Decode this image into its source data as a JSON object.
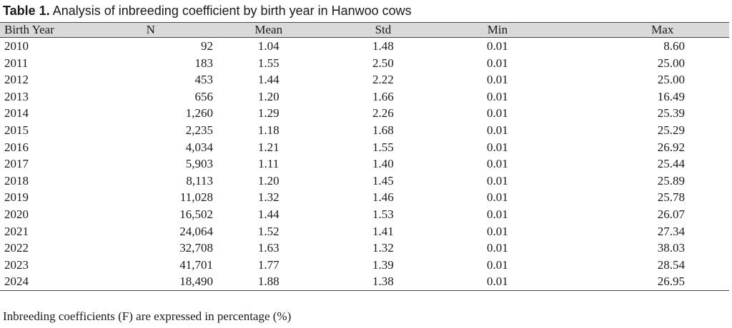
{
  "caption": {
    "label": "Table 1.",
    "text": "Analysis of inbreeding coefficient by birth year in Hanwoo cows"
  },
  "table": {
    "headers": [
      "Birth Year",
      "N",
      "Mean",
      "Std",
      "Min",
      "Max"
    ],
    "rows": [
      [
        "2010",
        "92",
        "1.04",
        "1.48",
        "0.01",
        "8.60"
      ],
      [
        "2011",
        "183",
        "1.55",
        "2.50",
        "0.01",
        "25.00"
      ],
      [
        "2012",
        "453",
        "1.44",
        "2.22",
        "0.01",
        "25.00"
      ],
      [
        "2013",
        "656",
        "1.20",
        "1.66",
        "0.01",
        "16.49"
      ],
      [
        "2014",
        "1,260",
        "1.29",
        "2.26",
        "0.01",
        "25.39"
      ],
      [
        "2015",
        "2,235",
        "1.18",
        "1.68",
        "0.01",
        "25.29"
      ],
      [
        "2016",
        "4,034",
        "1.21",
        "1.55",
        "0.01",
        "26.92"
      ],
      [
        "2017",
        "5,903",
        "1.11",
        "1.40",
        "0.01",
        "25.44"
      ],
      [
        "2018",
        "8,113",
        "1.20",
        "1.45",
        "0.01",
        "25.89"
      ],
      [
        "2019",
        "11,028",
        "1.32",
        "1.46",
        "0.01",
        "25.78"
      ],
      [
        "2020",
        "16,502",
        "1.44",
        "1.53",
        "0.01",
        "26.07"
      ],
      [
        "2021",
        "24,064",
        "1.52",
        "1.41",
        "0.01",
        "27.34"
      ],
      [
        "2022",
        "32,708",
        "1.63",
        "1.32",
        "0.01",
        "38.03"
      ],
      [
        "2023",
        "41,701",
        "1.77",
        "1.39",
        "0.01",
        "28.54"
      ],
      [
        "2024",
        "18,490",
        "1.88",
        "1.38",
        "0.01",
        "26.95"
      ]
    ]
  },
  "footnote": "Inbreeding coefficients (F) are expressed in percentage (%)",
  "colors": {
    "header_bg": "#d9d9d9",
    "rule": "#444444",
    "text": "#1a1a1a"
  }
}
